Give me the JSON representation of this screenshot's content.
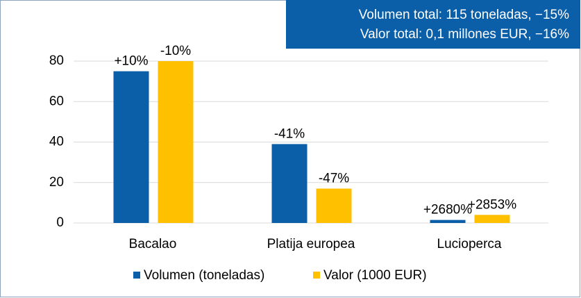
{
  "chart_data": {
    "type": "bar",
    "annotations": [
      "Volumen total: 115 toneladas, −15%",
      "Valor total: 0,1 millones EUR, −16%"
    ],
    "categories": [
      "Bacalao",
      "Platija europea",
      "Lucioperca"
    ],
    "series": [
      {
        "name": "Volumen (toneladas)",
        "color": "#0b5ea8",
        "values": [
          75,
          39,
          1.5
        ],
        "labels": [
          "+10%",
          "-41%",
          "+2680%"
        ]
      },
      {
        "name": "Valor (1000 EUR)",
        "color": "#ffc000",
        "values": [
          80,
          17,
          4
        ],
        "labels": [
          "-10%",
          "-47%",
          "+2853%"
        ]
      }
    ],
    "ylim": [
      0,
      80
    ],
    "yticks": [
      0,
      20,
      40,
      60,
      80
    ],
    "grid": true
  }
}
